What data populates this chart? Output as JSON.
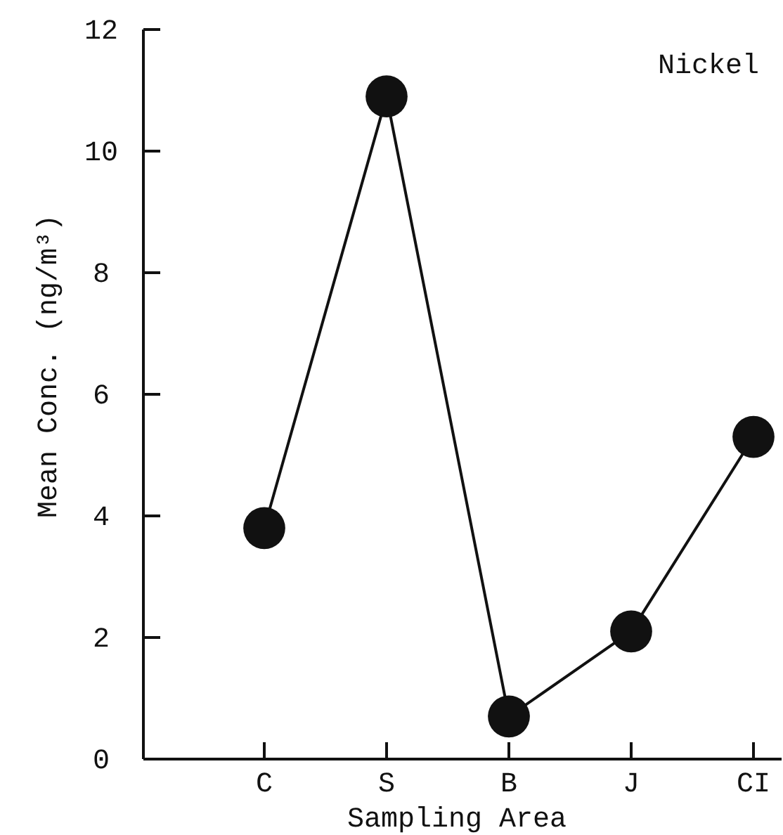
{
  "chart_data": {
    "type": "line",
    "title": "Nickel",
    "xlabel": "Sampling Area",
    "ylabel": "Mean Conc. (ng/m³)",
    "categories": [
      "C",
      "S",
      "B",
      "J",
      "CI"
    ],
    "series": [
      {
        "color": "#111111",
        "values": [
          3.8,
          10.9,
          0.7,
          2.1,
          5.3
        ]
      }
    ],
    "ylim": [
      0,
      12
    ],
    "yticks": [
      0,
      2,
      4,
      6,
      8,
      10,
      12
    ],
    "marker": "circle",
    "line_style": "solid"
  }
}
